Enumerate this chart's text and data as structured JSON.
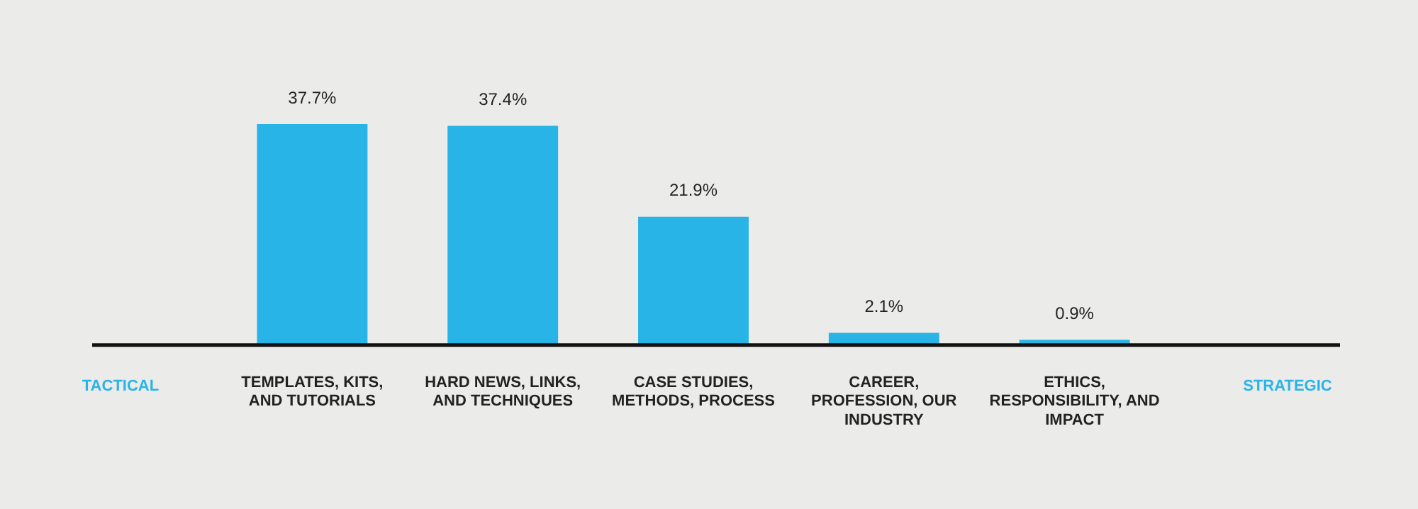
{
  "chart_data": {
    "type": "bar",
    "categories": [
      "TEMPLATES, KITS, AND TUTORIALS",
      "HARD NEWS, LINKS, AND TECHNIQUES",
      "CASE STUDIES, METHODS, PROCESS",
      "CAREER, PROFESSION, OUR INDUSTRY",
      "ETHICS, RESPONSIBILITY, AND IMPACT"
    ],
    "values": [
      37.7,
      37.4,
      21.9,
      2.1,
      0.9
    ],
    "value_labels": [
      "37.7%",
      "37.4%",
      "21.9%",
      "2.1%",
      "0.9%"
    ],
    "color": "#29b4e8",
    "annotations": [
      "TACTICAL",
      "STRATEGIC"
    ],
    "grid": false,
    "legend": false
  }
}
